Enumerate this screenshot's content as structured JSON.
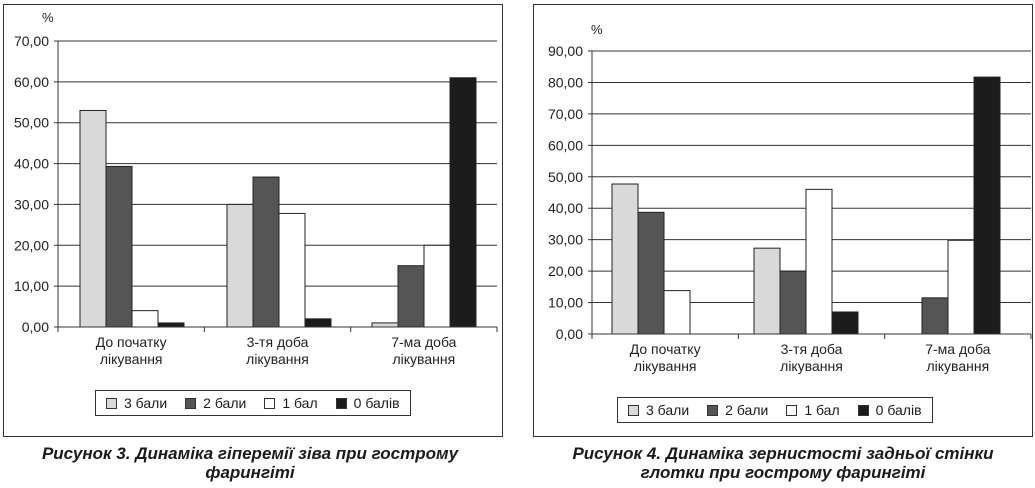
{
  "chart_data": [
    {
      "type": "bar",
      "unit": "%",
      "ylim": [
        0,
        70
      ],
      "ytick_step": 10,
      "yticks": [
        "0,00",
        "10,00",
        "20,00",
        "30,00",
        "40,00",
        "50,00",
        "60,00",
        "70,00"
      ],
      "categories": [
        [
          "До початку",
          "лікування"
        ],
        [
          "3-тя доба",
          "лікування"
        ],
        [
          "7-ма доба",
          "лікування"
        ]
      ],
      "series": [
        {
          "name": "3 бали",
          "color": "#d9d9d9",
          "values": [
            53.0,
            30.0,
            1.0
          ]
        },
        {
          "name": "2 бали",
          "color": "#555555",
          "values": [
            39.3,
            36.7,
            15.0
          ]
        },
        {
          "name": "1 бал",
          "color": "#ffffff",
          "values": [
            4.0,
            27.8,
            20.0
          ]
        },
        {
          "name": "0 балів",
          "color": "#1c1c1c",
          "values": [
            1.0,
            2.0,
            61.0
          ]
        }
      ],
      "grid": true,
      "legend": "bottom",
      "caption": [
        "Рисунок 3. Динаміка гіперемії зіва при гострому",
        "фарингіті"
      ]
    },
    {
      "type": "bar",
      "unit": "%",
      "ylim": [
        0,
        90
      ],
      "ytick_step": 10,
      "yticks": [
        "0,00",
        "10,00",
        "20,00",
        "30,00",
        "40,00",
        "50,00",
        "60,00",
        "70,00",
        "80,00",
        "90,00"
      ],
      "categories": [
        [
          "До початку",
          "лікування"
        ],
        [
          "3-тя доба",
          "лікування"
        ],
        [
          "7-ма доба",
          "лікування"
        ]
      ],
      "series": [
        {
          "name": "3 бали",
          "color": "#d9d9d9",
          "values": [
            47.7,
            27.3,
            0
          ]
        },
        {
          "name": "2 бали",
          "color": "#555555",
          "values": [
            38.7,
            20.0,
            11.5
          ]
        },
        {
          "name": "1 бал",
          "color": "#ffffff",
          "values": [
            13.8,
            46.0,
            29.8
          ]
        },
        {
          "name": "0 балів",
          "color": "#1c1c1c",
          "values": [
            0,
            7.0,
            81.7
          ]
        }
      ],
      "grid": true,
      "legend": "bottom",
      "caption": [
        "Рисунок 4. Динаміка зернистості задньої стінки",
        "глотки при гострому фарингіті"
      ]
    }
  ]
}
